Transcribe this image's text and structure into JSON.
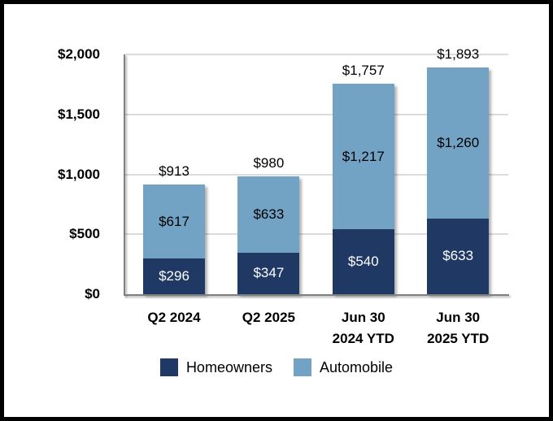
{
  "chart_data": {
    "type": "bar",
    "stacked": true,
    "title": "",
    "categories": [
      "Q2 2024",
      "Q2 2025",
      "Jun 30\n2024 YTD",
      "Jun 30\n2025 YTD"
    ],
    "series": [
      {
        "name": "Homeowners",
        "color": "#1F3864",
        "label_color": "#FFFFFF",
        "values": [
          296,
          347,
          540,
          633
        ],
        "value_labels": [
          "$296",
          "$347",
          "$540",
          "$633"
        ]
      },
      {
        "name": "Automobile",
        "color": "#72A3C4",
        "label_color": "#000000",
        "values": [
          617,
          633,
          1217,
          1260
        ],
        "value_labels": [
          "$617",
          "$633",
          "$1,217",
          "$1,260"
        ]
      }
    ],
    "totals": [
      913,
      980,
      1757,
      1893
    ],
    "total_labels": [
      "$913",
      "$980",
      "$1,757",
      "$1,893"
    ],
    "ylim": [
      0,
      2000
    ],
    "yticks": [
      0,
      500,
      1000,
      1500,
      2000
    ],
    "ytick_labels": [
      "$0",
      "$500",
      "$1,000",
      "$1,500",
      "$2,000"
    ],
    "grid": true,
    "legend_position": "bottom",
    "colors": {
      "homeowners": "#1F3864",
      "automobile": "#72A3C4",
      "gridline": "#DBDBDB",
      "axis_line": "#7F7F7F",
      "page_border": "#000000"
    }
  }
}
